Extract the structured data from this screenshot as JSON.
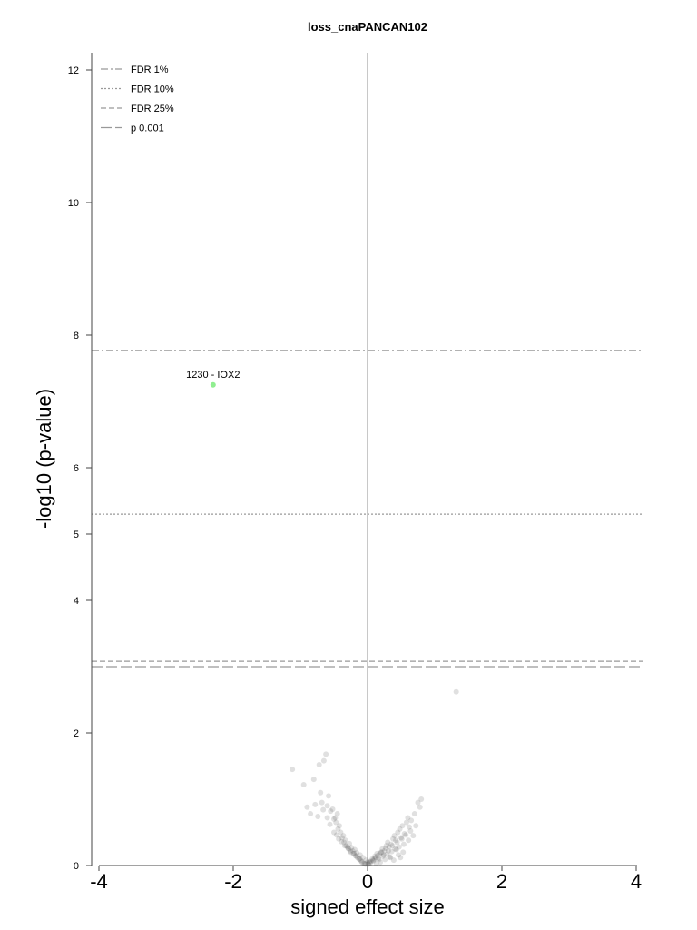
{
  "chart_data": {
    "type": "scatter",
    "title": "loss_cnaPANCAN102",
    "xlabel": "signed effect size",
    "ylabel": "-log10 (p-value)",
    "xlim": [
      -4.1,
      4.1
    ],
    "ylim": [
      0,
      12.3
    ],
    "x_ticks": [
      -4,
      -2,
      0,
      2,
      4
    ],
    "x_tick_labels": [
      "-4",
      "-2",
      "0",
      "2",
      "4"
    ],
    "y_ticks": [
      0,
      2,
      4,
      5,
      6,
      8,
      10,
      12
    ],
    "y_tick_labels": [
      "0",
      "2",
      "4",
      "5",
      "6",
      "8",
      "10",
      "12"
    ],
    "grid": false,
    "legend_position": "top-left",
    "legend": [
      {
        "label": "FDR 1%",
        "style": "dashdot"
      },
      {
        "label": "FDR 10%",
        "style": "dotted"
      },
      {
        "label": "FDR 25%",
        "style": "dashed"
      },
      {
        "label": "p 0.001",
        "style": "longdash"
      }
    ],
    "threshold_lines": [
      {
        "name": "FDR 1%",
        "y": 7.77,
        "style": "dashdot"
      },
      {
        "name": "FDR 10%",
        "y": 5.3,
        "style": "dotted"
      },
      {
        "name": "FDR 25%",
        "y": 3.08,
        "style": "dashed"
      },
      {
        "name": "p 0.001",
        "y": 3.0,
        "style": "longdash"
      }
    ],
    "highlight_points": [
      {
        "x": -2.3,
        "y": 7.25,
        "label": "1230 - IOX2",
        "color": "#90ee90"
      }
    ],
    "points_x": [
      -1.12,
      -0.95,
      -0.8,
      -0.72,
      -0.65,
      -0.62,
      -0.58,
      -0.52,
      -0.48,
      -0.45,
      -0.42,
      -0.4,
      -0.38,
      -0.35,
      -0.32,
      -0.3,
      -0.28,
      -0.25,
      -0.22,
      -0.2,
      -0.18,
      -0.15,
      -0.12,
      -0.1,
      -0.08,
      -0.05,
      -0.03,
      0.0,
      0.02,
      0.05,
      0.08,
      0.1,
      0.12,
      0.15,
      0.18,
      0.2,
      0.22,
      0.25,
      0.28,
      0.3,
      0.32,
      0.35,
      0.38,
      0.4,
      0.42,
      0.45,
      0.48,
      0.5,
      0.52,
      0.55,
      0.58,
      0.6,
      0.62,
      0.65,
      0.68,
      0.7,
      0.72,
      0.75,
      0.78,
      0.8,
      -0.7,
      -0.68,
      -0.6,
      -0.55,
      -0.5,
      -0.47,
      -0.44,
      -0.36,
      -0.33,
      -0.27,
      -0.24,
      -0.19,
      -0.16,
      -0.11,
      -0.07,
      -0.02,
      0.03,
      0.07,
      0.11,
      0.14,
      0.17,
      0.21,
      0.24,
      0.27,
      0.31,
      0.34,
      0.37,
      0.41,
      0.44,
      0.47,
      0.51,
      0.54,
      0.57,
      0.61,
      0.64,
      -0.9,
      -0.85,
      -0.78,
      -0.74,
      -0.66,
      -0.6,
      -0.56,
      -0.5,
      -0.46,
      -0.43,
      -0.39,
      -0.34,
      -0.29,
      -0.26,
      -0.21,
      -0.17,
      -0.13,
      -0.09,
      -0.04,
      0.01,
      0.04,
      0.09,
      0.13,
      0.16,
      0.19,
      0.23,
      0.26,
      0.29,
      0.33,
      0.36,
      0.39,
      0.43,
      0.46,
      0.49,
      0.53,
      1.32
    ],
    "points_y": [
      1.45,
      1.22,
      1.3,
      1.52,
      1.58,
      1.68,
      1.05,
      0.85,
      0.72,
      0.78,
      0.6,
      0.5,
      0.42,
      0.35,
      0.3,
      0.28,
      0.25,
      0.2,
      0.22,
      0.18,
      0.15,
      0.12,
      0.1,
      0.08,
      0.05,
      0.03,
      0.02,
      0.05,
      0.04,
      0.06,
      0.08,
      0.1,
      0.12,
      0.15,
      0.18,
      0.2,
      0.25,
      0.22,
      0.3,
      0.35,
      0.28,
      0.32,
      0.4,
      0.45,
      0.38,
      0.5,
      0.55,
      0.42,
      0.6,
      0.48,
      0.65,
      0.72,
      0.58,
      0.68,
      0.45,
      0.78,
      0.6,
      0.95,
      0.88,
      1.0,
      1.1,
      0.95,
      0.9,
      0.82,
      0.7,
      0.65,
      0.55,
      0.45,
      0.38,
      0.33,
      0.27,
      0.24,
      0.19,
      0.16,
      0.12,
      0.08,
      0.06,
      0.1,
      0.14,
      0.18,
      0.09,
      0.2,
      0.16,
      0.26,
      0.22,
      0.12,
      0.3,
      0.25,
      0.35,
      0.28,
      0.4,
      0.32,
      0.46,
      0.38,
      0.52,
      0.88,
      0.78,
      0.92,
      0.74,
      0.84,
      0.72,
      0.62,
      0.5,
      0.46,
      0.4,
      0.36,
      0.3,
      0.26,
      0.22,
      0.18,
      0.14,
      0.1,
      0.06,
      0.03,
      0.02,
      0.04,
      0.07,
      0.03,
      0.11,
      0.05,
      0.14,
      0.09,
      0.17,
      0.13,
      0.21,
      0.08,
      0.24,
      0.16,
      0.12,
      0.2,
      2.62
    ]
  }
}
